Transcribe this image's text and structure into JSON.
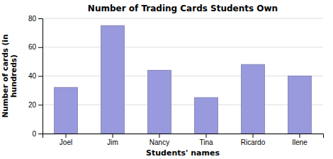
{
  "chart_data": {
    "type": "bar",
    "title": "Number of Trading Cards Students Own",
    "xlabel": "Students' names",
    "ylabel": "Number of cards (in\nhundreds)",
    "categories": [
      "Joel",
      "Jim",
      "Nancy",
      "Tina",
      "Ricardo",
      "Ilene"
    ],
    "values": [
      32,
      75,
      44,
      25,
      48,
      40
    ],
    "color": "#9999dd",
    "ylim": [
      0,
      80
    ],
    "yticks": [
      0,
      20,
      40,
      60,
      80
    ],
    "grid": true
  }
}
